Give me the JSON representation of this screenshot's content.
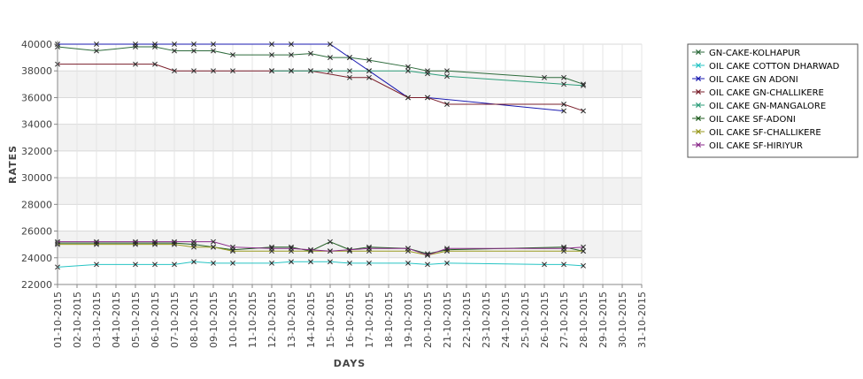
{
  "chart_data": {
    "type": "line",
    "title": "",
    "xlabel": "DAYS",
    "ylabel": "RATES",
    "ylim": [
      22000,
      40000
    ],
    "yticks": [
      22000,
      24000,
      26000,
      28000,
      30000,
      32000,
      34000,
      36000,
      38000,
      40000
    ],
    "grid": true,
    "legend_position": "right",
    "x": [
      "01-10-2015",
      "02-10-2015",
      "03-10-2015",
      "04-10-2015",
      "05-10-2015",
      "06-10-2015",
      "07-10-2015",
      "08-10-2015",
      "09-10-2015",
      "10-10-2015",
      "11-10-2015",
      "12-10-2015",
      "13-10-2015",
      "14-10-2015",
      "15-10-2015",
      "16-10-2015",
      "17-10-2015",
      "18-10-2015",
      "19-10-2015",
      "20-10-2015",
      "21-10-2015",
      "22-10-2015",
      "23-10-2015",
      "24-10-2015",
      "25-10-2015",
      "26-10-2015",
      "27-10-2015",
      "28-10-2015",
      "29-10-2015",
      "30-10-2015",
      "31-10-2015"
    ],
    "series": [
      {
        "name": "GN-CAKE-KOLHAPUR",
        "color": "#2e6b3c",
        "points": [
          [
            "01-10-2015",
            39800
          ],
          [
            "03-10-2015",
            39500
          ],
          [
            "05-10-2015",
            39800
          ],
          [
            "06-10-2015",
            39800
          ],
          [
            "07-10-2015",
            39500
          ],
          [
            "08-10-2015",
            39500
          ],
          [
            "09-10-2015",
            39500
          ],
          [
            "10-10-2015",
            39200
          ],
          [
            "12-10-2015",
            39200
          ],
          [
            "13-10-2015",
            39200
          ],
          [
            "14-10-2015",
            39300
          ],
          [
            "15-10-2015",
            39000
          ],
          [
            "16-10-2015",
            39000
          ],
          [
            "17-10-2015",
            38800
          ],
          [
            "19-10-2015",
            38300
          ],
          [
            "20-10-2015",
            38000
          ],
          [
            "21-10-2015",
            38000
          ],
          [
            "26-10-2015",
            37500
          ],
          [
            "27-10-2015",
            37500
          ],
          [
            "28-10-2015",
            37000
          ]
        ]
      },
      {
        "name": "OIL CAKE COTTON DHARWAD",
        "color": "#27c4c4",
        "points": [
          [
            "01-10-2015",
            23300
          ],
          [
            "03-10-2015",
            23500
          ],
          [
            "05-10-2015",
            23500
          ],
          [
            "06-10-2015",
            23500
          ],
          [
            "07-10-2015",
            23500
          ],
          [
            "08-10-2015",
            23700
          ],
          [
            "09-10-2015",
            23600
          ],
          [
            "10-10-2015",
            23600
          ],
          [
            "12-10-2015",
            23600
          ],
          [
            "13-10-2015",
            23700
          ],
          [
            "14-10-2015",
            23700
          ],
          [
            "15-10-2015",
            23700
          ],
          [
            "16-10-2015",
            23600
          ],
          [
            "17-10-2015",
            23600
          ],
          [
            "19-10-2015",
            23600
          ],
          [
            "20-10-2015",
            23500
          ],
          [
            "21-10-2015",
            23600
          ],
          [
            "26-10-2015",
            23500
          ],
          [
            "27-10-2015",
            23500
          ],
          [
            "28-10-2015",
            23400
          ]
        ]
      },
      {
        "name": "OIL CAKE GN ADONI",
        "color": "#1a1ab0",
        "points": [
          [
            "01-10-2015",
            40000
          ],
          [
            "03-10-2015",
            40000
          ],
          [
            "05-10-2015",
            40000
          ],
          [
            "06-10-2015",
            40000
          ],
          [
            "07-10-2015",
            40000
          ],
          [
            "08-10-2015",
            40000
          ],
          [
            "09-10-2015",
            40000
          ],
          [
            "12-10-2015",
            40000
          ],
          [
            "13-10-2015",
            40000
          ],
          [
            "15-10-2015",
            40000
          ],
          [
            "16-10-2015",
            39000
          ],
          [
            "17-10-2015",
            38000
          ],
          [
            "19-10-2015",
            36000
          ],
          [
            "20-10-2015",
            36000
          ],
          [
            "27-10-2015",
            35000
          ]
        ]
      },
      {
        "name": "OIL CAKE GN-CHALLIKERE",
        "color": "#7a1f2b",
        "points": [
          [
            "01-10-2015",
            38500
          ],
          [
            "05-10-2015",
            38500
          ],
          [
            "06-10-2015",
            38500
          ],
          [
            "07-10-2015",
            38000
          ],
          [
            "08-10-2015",
            38000
          ],
          [
            "09-10-2015",
            38000
          ],
          [
            "10-10-2015",
            38000
          ],
          [
            "12-10-2015",
            38000
          ],
          [
            "13-10-2015",
            38000
          ],
          [
            "14-10-2015",
            38000
          ],
          [
            "16-10-2015",
            37500
          ],
          [
            "17-10-2015",
            37500
          ],
          [
            "19-10-2015",
            36000
          ],
          [
            "20-10-2015",
            36000
          ],
          [
            "21-10-2015",
            35500
          ],
          [
            "27-10-2015",
            35500
          ],
          [
            "28-10-2015",
            35000
          ]
        ]
      },
      {
        "name": "OIL CAKE GN-MANGALORE",
        "color": "#2e9e7a",
        "points": [
          [
            "12-10-2015",
            38000
          ],
          [
            "13-10-2015",
            38000
          ],
          [
            "14-10-2015",
            38000
          ],
          [
            "15-10-2015",
            38000
          ],
          [
            "16-10-2015",
            38000
          ],
          [
            "17-10-2015",
            38000
          ],
          [
            "19-10-2015",
            38000
          ],
          [
            "20-10-2015",
            37800
          ],
          [
            "21-10-2015",
            37600
          ],
          [
            "27-10-2015",
            37000
          ],
          [
            "28-10-2015",
            36900
          ]
        ]
      },
      {
        "name": "OIL CAKE SF-ADONI",
        "color": "#1f5c1f",
        "points": [
          [
            "01-10-2015",
            25100
          ],
          [
            "03-10-2015",
            25100
          ],
          [
            "05-10-2015",
            25100
          ],
          [
            "06-10-2015",
            25100
          ],
          [
            "07-10-2015",
            25100
          ],
          [
            "08-10-2015",
            25000
          ],
          [
            "09-10-2015",
            24800
          ],
          [
            "10-10-2015",
            24600
          ],
          [
            "12-10-2015",
            24800
          ],
          [
            "13-10-2015",
            24800
          ],
          [
            "14-10-2015",
            24500
          ],
          [
            "15-10-2015",
            25200
          ],
          [
            "16-10-2015",
            24600
          ],
          [
            "17-10-2015",
            24800
          ],
          [
            "19-10-2015",
            24700
          ],
          [
            "20-10-2015",
            24300
          ],
          [
            "21-10-2015",
            24600
          ],
          [
            "27-10-2015",
            24800
          ],
          [
            "28-10-2015",
            24500
          ]
        ]
      },
      {
        "name": "OIL CAKE SF-CHALLIKERE",
        "color": "#9a9a1f",
        "points": [
          [
            "01-10-2015",
            25000
          ],
          [
            "03-10-2015",
            25000
          ],
          [
            "05-10-2015",
            25000
          ],
          [
            "06-10-2015",
            25000
          ],
          [
            "07-10-2015",
            25000
          ],
          [
            "08-10-2015",
            24800
          ],
          [
            "09-10-2015",
            24800
          ],
          [
            "10-10-2015",
            24500
          ],
          [
            "12-10-2015",
            24500
          ],
          [
            "13-10-2015",
            24500
          ],
          [
            "14-10-2015",
            24500
          ],
          [
            "15-10-2015",
            24500
          ],
          [
            "16-10-2015",
            24500
          ],
          [
            "17-10-2015",
            24500
          ],
          [
            "19-10-2015",
            24500
          ],
          [
            "20-10-2015",
            24200
          ],
          [
            "21-10-2015",
            24500
          ],
          [
            "27-10-2015",
            24500
          ],
          [
            "28-10-2015",
            24500
          ]
        ]
      },
      {
        "name": "OIL CAKE SF-HIRIYUR",
        "color": "#8a2a8a",
        "points": [
          [
            "01-10-2015",
            25200
          ],
          [
            "03-10-2015",
            25200
          ],
          [
            "05-10-2015",
            25200
          ],
          [
            "06-10-2015",
            25200
          ],
          [
            "07-10-2015",
            25200
          ],
          [
            "08-10-2015",
            25200
          ],
          [
            "09-10-2015",
            25200
          ],
          [
            "10-10-2015",
            24800
          ],
          [
            "12-10-2015",
            24700
          ],
          [
            "13-10-2015",
            24700
          ],
          [
            "14-10-2015",
            24600
          ],
          [
            "15-10-2015",
            24500
          ],
          [
            "16-10-2015",
            24600
          ],
          [
            "17-10-2015",
            24700
          ],
          [
            "19-10-2015",
            24700
          ],
          [
            "20-10-2015",
            24200
          ],
          [
            "21-10-2015",
            24700
          ],
          [
            "27-10-2015",
            24700
          ],
          [
            "28-10-2015",
            24800
          ]
        ]
      }
    ]
  }
}
